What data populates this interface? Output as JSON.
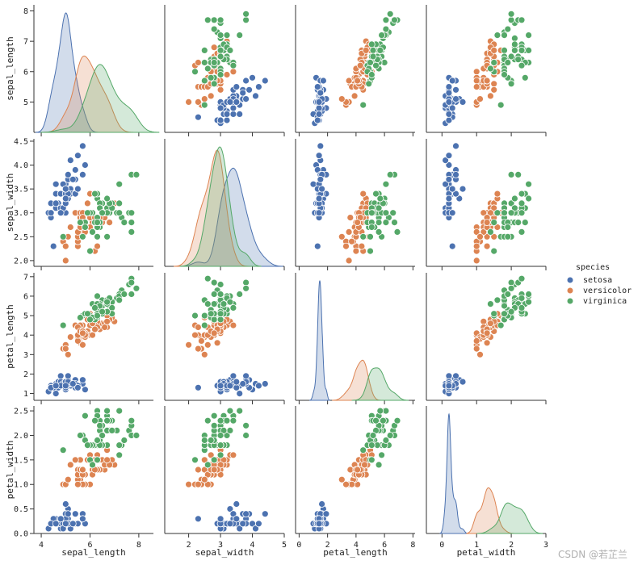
{
  "chart_data": {
    "type": "pairplot",
    "variables": [
      "sepal_length",
      "sepal_width",
      "petal_length",
      "petal_width"
    ],
    "axes": {
      "sepal_length": {
        "range": [
          4.0,
          8.2
        ],
        "ticks": [
          5,
          6,
          7,
          8
        ],
        "x_range": [
          3.7,
          8.6
        ],
        "x_ticks": [
          4,
          6,
          8
        ]
      },
      "sepal_width": {
        "range": [
          1.88,
          4.55
        ],
        "ticks": [
          2.0,
          2.5,
          3.0,
          3.5,
          4.0,
          4.5
        ],
        "tick_labels": [
          "2.0",
          "2.5",
          "3.0",
          "3.5",
          "4.0",
          "4.5"
        ],
        "x_range": [
          1.25,
          5.0
        ],
        "x_ticks": [
          2,
          3,
          4,
          5
        ]
      },
      "petal_length": {
        "range": [
          0.65,
          7.2
        ],
        "ticks": [
          1,
          2,
          3,
          4,
          5,
          6,
          7
        ],
        "x_range": [
          -0.25,
          8.15
        ],
        "x_ticks": [
          0,
          2,
          4,
          6,
          8
        ]
      },
      "petal_width": {
        "range": [
          0.0,
          2.6
        ],
        "ticks": [
          0.0,
          0.5,
          1.0,
          1.5,
          2.0,
          2.5
        ],
        "tick_labels": [
          "0.0",
          "0.5",
          "1.0",
          "1.5",
          "2.0",
          "2.5"
        ],
        "x_range": [
          -0.45,
          3.0
        ],
        "x_ticks": [
          0,
          1,
          2,
          3
        ]
      }
    },
    "legend": {
      "title": "species",
      "placement": "right-center",
      "entries": [
        {
          "name": "setosa",
          "color": "#4c72b0"
        },
        {
          "name": "versicolor",
          "color": "#dd8452"
        },
        {
          "name": "virginica",
          "color": "#55a868"
        }
      ]
    },
    "series": [
      {
        "name": "setosa",
        "color": "#4c72b0",
        "points": [
          [
            5.1,
            3.5,
            1.4,
            0.2
          ],
          [
            4.9,
            3.0,
            1.4,
            0.2
          ],
          [
            4.7,
            3.2,
            1.3,
            0.2
          ],
          [
            4.6,
            3.1,
            1.5,
            0.2
          ],
          [
            5.0,
            3.6,
            1.4,
            0.2
          ],
          [
            5.4,
            3.9,
            1.7,
            0.4
          ],
          [
            4.6,
            3.4,
            1.4,
            0.3
          ],
          [
            5.0,
            3.4,
            1.5,
            0.2
          ],
          [
            4.4,
            2.9,
            1.4,
            0.2
          ],
          [
            4.9,
            3.1,
            1.5,
            0.1
          ],
          [
            5.4,
            3.7,
            1.5,
            0.2
          ],
          [
            4.8,
            3.4,
            1.6,
            0.2
          ],
          [
            4.8,
            3.0,
            1.4,
            0.1
          ],
          [
            4.3,
            3.0,
            1.1,
            0.1
          ],
          [
            5.8,
            4.0,
            1.2,
            0.2
          ],
          [
            5.7,
            4.4,
            1.5,
            0.4
          ],
          [
            5.4,
            3.9,
            1.3,
            0.4
          ],
          [
            5.1,
            3.5,
            1.4,
            0.3
          ],
          [
            5.7,
            3.8,
            1.7,
            0.3
          ],
          [
            5.1,
            3.8,
            1.5,
            0.3
          ],
          [
            5.4,
            3.4,
            1.7,
            0.2
          ],
          [
            5.1,
            3.7,
            1.5,
            0.4
          ],
          [
            4.6,
            3.6,
            1.0,
            0.2
          ],
          [
            5.1,
            3.3,
            1.7,
            0.5
          ],
          [
            4.8,
            3.4,
            1.9,
            0.2
          ],
          [
            5.0,
            3.0,
            1.6,
            0.2
          ],
          [
            5.0,
            3.4,
            1.6,
            0.4
          ],
          [
            5.2,
            3.5,
            1.5,
            0.2
          ],
          [
            5.2,
            3.4,
            1.4,
            0.2
          ],
          [
            4.7,
            3.2,
            1.6,
            0.2
          ],
          [
            4.8,
            3.1,
            1.6,
            0.2
          ],
          [
            5.4,
            3.4,
            1.5,
            0.4
          ],
          [
            5.2,
            4.1,
            1.5,
            0.1
          ],
          [
            5.5,
            4.2,
            1.4,
            0.2
          ],
          [
            4.9,
            3.1,
            1.5,
            0.2
          ],
          [
            5.0,
            3.2,
            1.2,
            0.2
          ],
          [
            5.5,
            3.5,
            1.3,
            0.2
          ],
          [
            4.9,
            3.6,
            1.4,
            0.1
          ],
          [
            4.4,
            3.0,
            1.3,
            0.2
          ],
          [
            5.1,
            3.4,
            1.5,
            0.2
          ],
          [
            5.0,
            3.5,
            1.3,
            0.3
          ],
          [
            4.5,
            2.3,
            1.3,
            0.3
          ],
          [
            4.4,
            3.2,
            1.3,
            0.2
          ],
          [
            5.0,
            3.5,
            1.6,
            0.6
          ],
          [
            5.1,
            3.8,
            1.9,
            0.4
          ],
          [
            4.8,
            3.0,
            1.4,
            0.3
          ],
          [
            5.1,
            3.8,
            1.6,
            0.2
          ],
          [
            4.6,
            3.2,
            1.4,
            0.2
          ],
          [
            5.3,
            3.7,
            1.5,
            0.2
          ],
          [
            5.0,
            3.3,
            1.4,
            0.2
          ]
        ]
      },
      {
        "name": "versicolor",
        "color": "#dd8452",
        "points": [
          [
            7.0,
            3.2,
            4.7,
            1.4
          ],
          [
            6.4,
            3.2,
            4.5,
            1.5
          ],
          [
            6.9,
            3.1,
            4.9,
            1.5
          ],
          [
            5.5,
            2.3,
            4.0,
            1.3
          ],
          [
            6.5,
            2.8,
            4.6,
            1.5
          ],
          [
            5.7,
            2.8,
            4.5,
            1.3
          ],
          [
            6.3,
            3.3,
            4.7,
            1.6
          ],
          [
            4.9,
            2.4,
            3.3,
            1.0
          ],
          [
            6.6,
            2.9,
            4.6,
            1.3
          ],
          [
            5.2,
            2.7,
            3.9,
            1.4
          ],
          [
            5.0,
            2.0,
            3.5,
            1.0
          ],
          [
            5.9,
            3.0,
            4.2,
            1.5
          ],
          [
            6.0,
            2.2,
            4.0,
            1.0
          ],
          [
            6.1,
            2.9,
            4.7,
            1.4
          ],
          [
            5.6,
            2.9,
            3.6,
            1.3
          ],
          [
            6.7,
            3.1,
            4.4,
            1.4
          ],
          [
            5.6,
            3.0,
            4.5,
            1.5
          ],
          [
            5.8,
            2.7,
            4.1,
            1.0
          ],
          [
            6.2,
            2.2,
            4.5,
            1.5
          ],
          [
            5.6,
            2.5,
            3.9,
            1.1
          ],
          [
            5.9,
            3.2,
            4.8,
            1.8
          ],
          [
            6.1,
            2.8,
            4.0,
            1.3
          ],
          [
            6.3,
            2.5,
            4.9,
            1.5
          ],
          [
            6.1,
            2.8,
            4.7,
            1.2
          ],
          [
            6.4,
            2.9,
            4.3,
            1.3
          ],
          [
            6.6,
            3.0,
            4.4,
            1.4
          ],
          [
            6.8,
            2.8,
            4.8,
            1.4
          ],
          [
            6.7,
            3.0,
            5.0,
            1.7
          ],
          [
            6.0,
            2.9,
            4.5,
            1.5
          ],
          [
            5.7,
            2.6,
            3.5,
            1.0
          ],
          [
            5.5,
            2.4,
            3.8,
            1.1
          ],
          [
            5.5,
            2.4,
            3.7,
            1.0
          ],
          [
            5.8,
            2.7,
            3.9,
            1.2
          ],
          [
            6.0,
            2.7,
            5.1,
            1.6
          ],
          [
            5.4,
            3.0,
            4.5,
            1.5
          ],
          [
            6.0,
            3.4,
            4.5,
            1.6
          ],
          [
            6.7,
            3.1,
            4.7,
            1.5
          ],
          [
            6.3,
            2.3,
            4.4,
            1.3
          ],
          [
            5.6,
            3.0,
            4.1,
            1.3
          ],
          [
            5.5,
            2.5,
            4.0,
            1.3
          ],
          [
            5.5,
            2.6,
            4.4,
            1.2
          ],
          [
            6.1,
            3.0,
            4.6,
            1.4
          ],
          [
            5.8,
            2.6,
            4.0,
            1.2
          ],
          [
            5.0,
            2.3,
            3.3,
            1.0
          ],
          [
            5.6,
            2.7,
            4.2,
            1.3
          ],
          [
            5.7,
            3.0,
            4.2,
            1.2
          ],
          [
            5.7,
            2.9,
            4.2,
            1.3
          ],
          [
            6.2,
            2.9,
            4.3,
            1.3
          ],
          [
            5.1,
            2.5,
            3.0,
            1.1
          ],
          [
            5.7,
            2.8,
            4.1,
            1.3
          ]
        ]
      },
      {
        "name": "virginica",
        "color": "#55a868",
        "points": [
          [
            6.3,
            3.3,
            6.0,
            2.5
          ],
          [
            5.8,
            2.7,
            5.1,
            1.9
          ],
          [
            7.1,
            3.0,
            5.9,
            2.1
          ],
          [
            6.3,
            2.9,
            5.6,
            1.8
          ],
          [
            6.5,
            3.0,
            5.8,
            2.2
          ],
          [
            7.6,
            3.0,
            6.6,
            2.1
          ],
          [
            4.9,
            2.5,
            4.5,
            1.7
          ],
          [
            7.3,
            2.9,
            6.3,
            1.8
          ],
          [
            6.7,
            2.5,
            5.8,
            1.8
          ],
          [
            7.2,
            3.6,
            6.1,
            2.5
          ],
          [
            6.5,
            3.2,
            5.1,
            2.0
          ],
          [
            6.4,
            2.7,
            5.3,
            1.9
          ],
          [
            6.8,
            3.0,
            5.5,
            2.1
          ],
          [
            5.7,
            2.5,
            5.0,
            2.0
          ],
          [
            5.8,
            2.8,
            5.1,
            2.4
          ],
          [
            6.4,
            3.2,
            5.3,
            2.3
          ],
          [
            6.5,
            3.0,
            5.5,
            1.8
          ],
          [
            7.7,
            3.8,
            6.7,
            2.2
          ],
          [
            7.7,
            2.6,
            6.9,
            2.3
          ],
          [
            6.0,
            2.2,
            5.0,
            1.5
          ],
          [
            6.9,
            3.2,
            5.7,
            2.3
          ],
          [
            5.6,
            2.8,
            4.9,
            2.0
          ],
          [
            7.7,
            2.8,
            6.7,
            2.0
          ],
          [
            6.3,
            2.7,
            4.9,
            1.8
          ],
          [
            6.7,
            3.3,
            5.7,
            2.1
          ],
          [
            7.2,
            3.2,
            6.0,
            1.8
          ],
          [
            6.2,
            2.8,
            4.8,
            1.8
          ],
          [
            6.1,
            3.0,
            4.9,
            1.8
          ],
          [
            6.4,
            2.8,
            5.6,
            2.1
          ],
          [
            7.2,
            3.0,
            5.8,
            1.6
          ],
          [
            7.4,
            2.8,
            6.1,
            1.9
          ],
          [
            7.9,
            3.8,
            6.4,
            2.0
          ],
          [
            6.4,
            2.8,
            5.6,
            2.2
          ],
          [
            6.3,
            2.8,
            5.1,
            1.5
          ],
          [
            6.1,
            2.6,
            5.6,
            1.4
          ],
          [
            7.7,
            3.0,
            6.1,
            2.3
          ],
          [
            6.3,
            3.4,
            5.6,
            2.4
          ],
          [
            6.4,
            3.1,
            5.5,
            1.8
          ],
          [
            6.0,
            3.0,
            4.8,
            1.8
          ],
          [
            6.9,
            3.1,
            5.4,
            2.1
          ],
          [
            6.7,
            3.1,
            5.6,
            2.4
          ],
          [
            6.9,
            3.1,
            5.1,
            2.3
          ],
          [
            5.8,
            2.7,
            5.1,
            1.9
          ],
          [
            6.8,
            3.2,
            5.9,
            2.3
          ],
          [
            6.7,
            3.3,
            5.7,
            2.5
          ],
          [
            6.7,
            3.0,
            5.2,
            2.3
          ],
          [
            6.3,
            2.5,
            5.0,
            1.9
          ],
          [
            6.5,
            3.0,
            5.2,
            2.0
          ],
          [
            6.2,
            3.4,
            5.4,
            2.3
          ],
          [
            5.9,
            3.0,
            5.1,
            1.8
          ]
        ]
      }
    ]
  },
  "watermark": "CSDN @若芷兰"
}
